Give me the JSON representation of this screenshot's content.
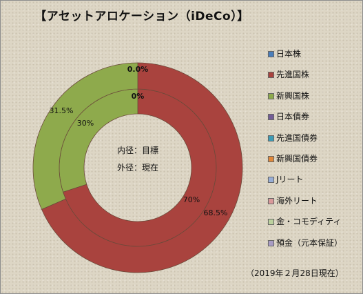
{
  "title": "【アセットアロケーション（iDeCo）】",
  "date_note": "（2019年２月28日現在）",
  "center_labels": [
    "内径：目標",
    "外径：現在"
  ],
  "chart_data": {
    "type": "pie",
    "subtype": "doughnut",
    "title": "【アセットアロケーション（iDeCo）】",
    "legend_position": "right",
    "categories": [
      "日本株",
      "先進国株",
      "新興国株",
      "日本債券",
      "先進国債券",
      "新興国債券",
      "Jリート",
      "海外リート",
      "金・コモディティ",
      "預金（元本保証）"
    ],
    "colors": [
      "#4a7ebb",
      "#a9433e",
      "#8eaa4c",
      "#735c96",
      "#3d9bb5",
      "#e0883a",
      "#97add6",
      "#d9999a",
      "#bcd19e",
      "#a99cc4"
    ],
    "series": [
      {
        "name": "内径：目標",
        "values": [
          0,
          70,
          30,
          0,
          0,
          0,
          0,
          0,
          0,
          0
        ],
        "labels": [
          "0%",
          "70%",
          "30%"
        ]
      },
      {
        "name": "外径：現在",
        "values": [
          0,
          68.5,
          31.5,
          0,
          0,
          0,
          0,
          0,
          0,
          0
        ],
        "labels": [
          "0.0%",
          "68.5%",
          "31.5%"
        ]
      }
    ]
  }
}
